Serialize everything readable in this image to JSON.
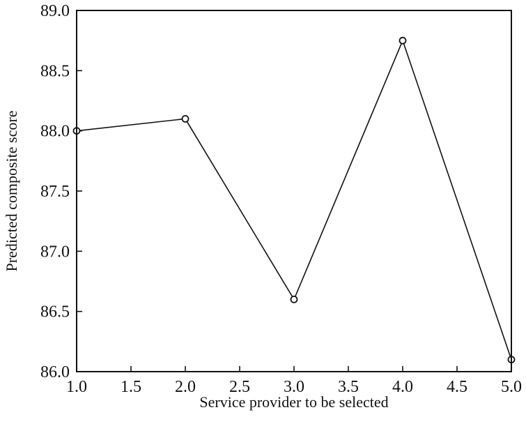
{
  "chart_data": {
    "type": "line",
    "title": "",
    "xlabel": "Service provider to be selected",
    "ylabel": "Predicted composite score",
    "xlim": [
      1.0,
      5.0
    ],
    "ylim": [
      86.0,
      89.0
    ],
    "x_ticks": [
      "1.0",
      "1.5",
      "2.0",
      "2.5",
      "3.0",
      "3.5",
      "4.0",
      "4.5",
      "5.0"
    ],
    "y_ticks": [
      "86.0",
      "86.5",
      "87.0",
      "87.5",
      "88.0",
      "88.5",
      "89.0"
    ],
    "grid": false,
    "legend": "none",
    "series": [
      {
        "x": [
          1,
          2,
          3,
          4,
          5
        ],
        "y": [
          88.0,
          88.1,
          86.6,
          88.75,
          86.1
        ],
        "marker": "open-circle",
        "color": "#111111"
      }
    ]
  }
}
